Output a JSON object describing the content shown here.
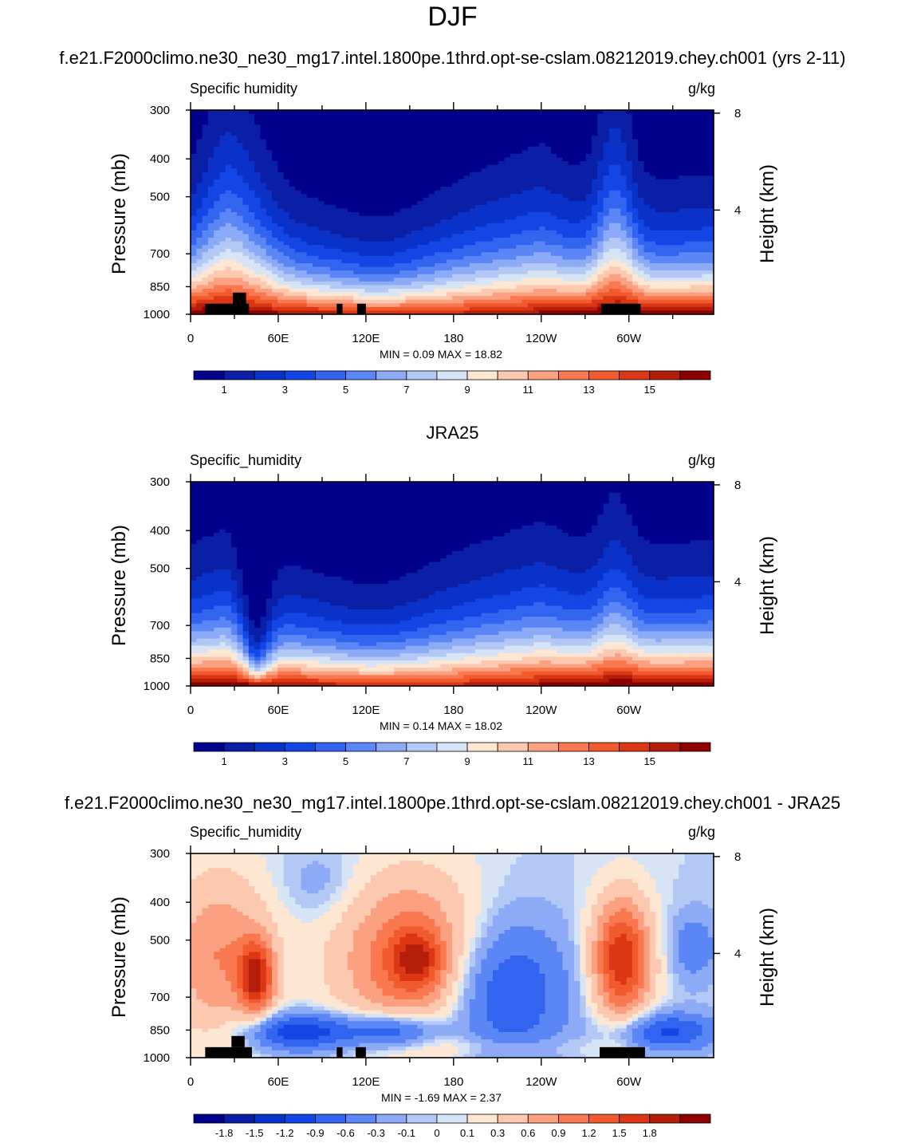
{
  "page": {
    "title": "DJF"
  },
  "chart_data": [
    {
      "type": "contour",
      "title": "f.e21.F2000climo.ne30_ne30_mg17.intel.1800pe.1thrd.opt-se-cslam.08212019.chey.ch001 (yrs 2-11)",
      "panel_label": "Specific humidity",
      "units": "g/kg",
      "ylabel": "Pressure (mb)",
      "y2label": "Height (km)",
      "pressure_ticks": [
        300,
        400,
        500,
        700,
        850,
        1000
      ],
      "height_ticks": [
        8,
        4
      ],
      "x_ticks": [
        "0",
        "60E",
        "120E",
        "180",
        "120W",
        "60W"
      ],
      "min_label": "MIN =",
      "min_value": "0.09",
      "max_label": "MAX =",
      "max_value": "18.82",
      "colorbar_labels": [
        "1",
        "3",
        "5",
        "7",
        "9",
        "11",
        "13",
        "15"
      ],
      "shape": {
        "top_level_m": [
          4.5,
          5.5,
          4.6,
          4.0,
          3.5,
          3.6,
          5.0,
          6.0,
          4.4,
          4.8
        ],
        "top_lon": [
          0,
          25,
          40,
          90,
          120,
          140,
          190,
          240,
          280,
          357
        ],
        "peaks": [
          [
            30,
            3.0,
            18
          ],
          [
            290,
            4.0,
            10
          ]
        ],
        "orography": [
          [
            10,
            40,
            1000,
            940
          ],
          [
            29,
            38,
            940,
            880
          ],
          [
            100,
            104,
            1000,
            940
          ],
          [
            114,
            120,
            1000,
            940
          ],
          [
            281,
            308,
            1000,
            940
          ]
        ]
      }
    },
    {
      "type": "contour",
      "title": "JRA25",
      "panel_label": "Specific_humidity",
      "units": "g/kg",
      "ylabel": "Pressure (mb)",
      "y2label": "Height (km)",
      "pressure_ticks": [
        300,
        400,
        500,
        700,
        850,
        1000
      ],
      "height_ticks": [
        8,
        4
      ],
      "x_ticks": [
        "0",
        "60E",
        "120E",
        "180",
        "120W",
        "60W"
      ],
      "min_label": "MIN =",
      "min_value": "0.14",
      "max_label": "MAX =",
      "max_value": "18.02",
      "colorbar_labels": [
        "1",
        "3",
        "5",
        "7",
        "9",
        "11",
        "13",
        "15"
      ],
      "shape": {
        "top_level_m": [
          4.8,
          5.5,
          4.6,
          4.0,
          3.6,
          3.8,
          5.0,
          5.8,
          4.6,
          5.0
        ],
        "top_lon": [
          0,
          25,
          42,
          90,
          120,
          140,
          190,
          240,
          280,
          357
        ],
        "peaks": [
          [
            45,
            -2.5,
            8
          ],
          [
            290,
            2.0,
            10
          ]
        ],
        "orography": []
      }
    },
    {
      "type": "contour",
      "title": "f.e21.F2000climo.ne30_ne30_mg17.intel.1800pe.1thrd.opt-se-cslam.08212019.chey.ch001 - JRA25",
      "panel_label": "Specific_humidity",
      "units": "g/kg",
      "ylabel": "Pressure (mb)",
      "y2label": "Height (km)",
      "pressure_ticks": [
        300,
        400,
        500,
        700,
        850,
        1000
      ],
      "height_ticks": [
        8,
        4
      ],
      "x_ticks": [
        "0",
        "60E",
        "120E",
        "180",
        "120W",
        "60W"
      ],
      "min_label": "MIN =",
      "min_value": "-1.69",
      "max_label": "MAX =",
      "max_value": "2.37",
      "colorbar_labels": [
        "-1.8",
        "-1.5",
        "-1.2",
        "-0.9",
        "-0.6",
        "-0.3",
        "-0.1",
        "0",
        "0.1",
        "0.3",
        "0.6",
        "0.9",
        "1.2",
        "1.5",
        "1.8"
      ],
      "shape": {
        "orography": [
          [
            10,
            42,
            1000,
            940
          ],
          [
            28,
            37,
            940,
            880
          ],
          [
            100,
            104,
            1000,
            940
          ],
          [
            113,
            120,
            1000,
            940
          ],
          [
            280,
            311,
            1000,
            940
          ]
        ]
      }
    }
  ],
  "colors": {
    "humidity": [
      "#00008c",
      "#0a1ea6",
      "#0a32c8",
      "#1446e6",
      "#3264f0",
      "#5a87f5",
      "#8caaf5",
      "#b4c8f5",
      "#d7e4f5",
      "#fde6d2",
      "#fdc8b0",
      "#fca082",
      "#fa7850",
      "#f05a2d",
      "#dc3714",
      "#b41e0a",
      "#8c0000"
    ],
    "diff": [
      "#00008c",
      "#0a1ea6",
      "#0a32c8",
      "#1446e6",
      "#3264f0",
      "#5a87f5",
      "#8caaf5",
      "#b4c8f5",
      "#d7e4f5",
      "#fde6d2",
      "#fdc8b0",
      "#fca082",
      "#fa7850",
      "#f05a2d",
      "#dc3714",
      "#b41e0a",
      "#8c0000"
    ]
  }
}
